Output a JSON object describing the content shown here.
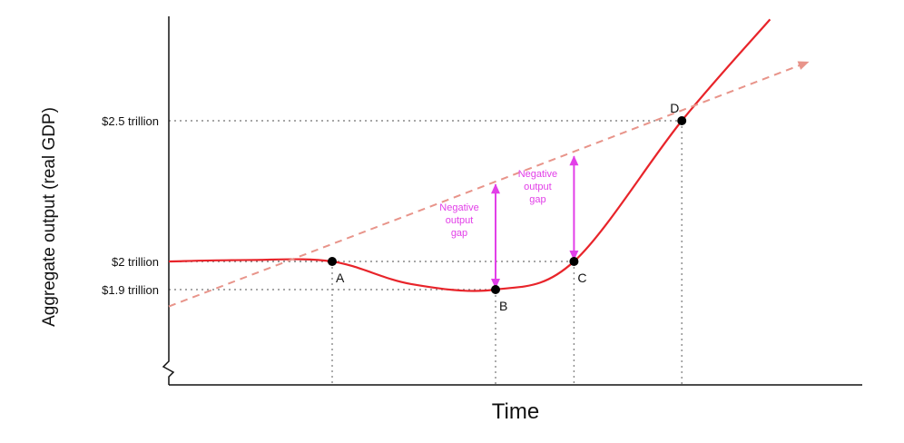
{
  "chart_data": {
    "type": "line",
    "xlabel": "Time",
    "ylabel": "Aggregate output (real GDP)",
    "y_axis_break": true,
    "grid": false,
    "yticks": [
      {
        "value": 2.5,
        "label": "$2.5 trillion"
      },
      {
        "value": 2.0,
        "label": "$2 trillion"
      },
      {
        "value": 1.9,
        "label": "$1.9 trillion"
      }
    ],
    "series": [
      {
        "style": "solid",
        "color": "#e8242a",
        "points": [
          [
            0,
            2.0
          ],
          [
            0.12,
            2.005
          ],
          [
            0.25,
            2.0
          ],
          [
            0.37,
            1.92
          ],
          [
            0.5,
            1.9
          ],
          [
            0.62,
            2.0
          ],
          [
            0.785,
            2.5
          ],
          [
            0.92,
            2.86
          ]
        ]
      },
      {
        "style": "dashed",
        "color": "#e8948a",
        "arrow": true,
        "points": [
          [
            0,
            1.84
          ],
          [
            0.98,
            2.71
          ]
        ]
      }
    ],
    "points": [
      {
        "label": "A",
        "x": 0.25,
        "y": 2.0
      },
      {
        "label": "B",
        "x": 0.5,
        "y": 1.9
      },
      {
        "label": "C",
        "x": 0.62,
        "y": 2.0
      },
      {
        "label": "D",
        "x": 0.785,
        "y": 2.5
      }
    ],
    "annotations": [
      {
        "text": [
          "Negative",
          "output",
          "gap"
        ],
        "x": 0.5,
        "y_from": 1.9,
        "y_to": 2.28,
        "color": "#e23fe8"
      },
      {
        "text": [
          "Negative",
          "output",
          "gap"
        ],
        "x": 0.62,
        "y_from": 2.0,
        "y_to": 2.38,
        "color": "#e23fe8"
      }
    ]
  }
}
